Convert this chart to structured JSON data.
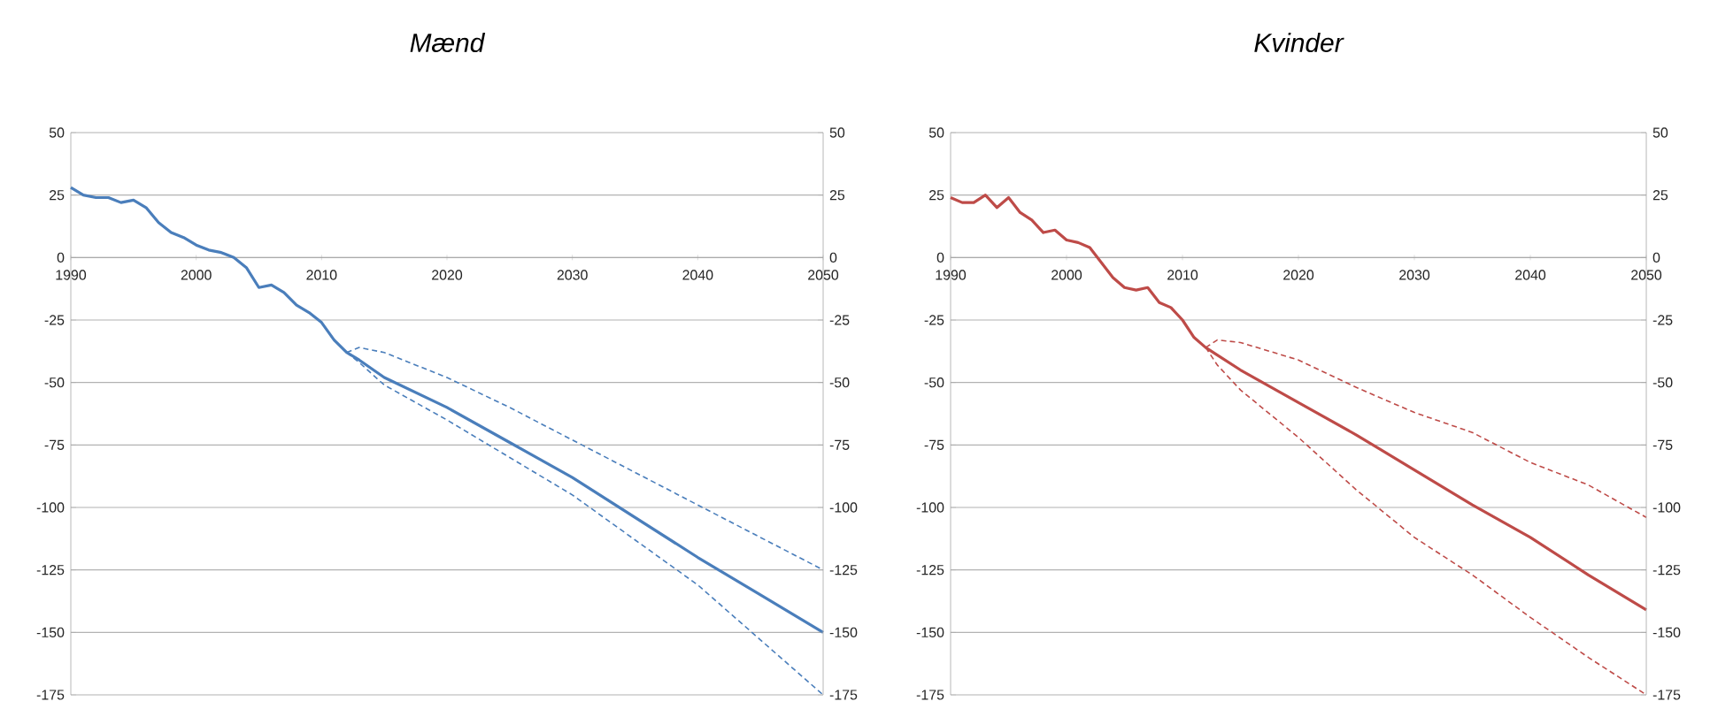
{
  "chart_data": [
    {
      "type": "line",
      "title": "Mænd",
      "xlim": [
        1990,
        2050
      ],
      "xticks": [
        1990,
        2000,
        2010,
        2020,
        2030,
        2040,
        2050
      ],
      "ylim": [
        -175,
        50
      ],
      "yticks": [
        -175,
        -150,
        -125,
        -100,
        -75,
        -50,
        -25,
        0,
        25,
        50
      ],
      "y2lim": [
        -175,
        50
      ],
      "y2ticks": [
        -175,
        -150,
        -125,
        -100,
        -75,
        -50,
        -25,
        0,
        25,
        50
      ],
      "grid": "y",
      "series": [
        {
          "color": "#4a7ebb",
          "line_style": "solid",
          "x": [
            1990,
            1991,
            1992,
            1993,
            1994,
            1995,
            1996,
            1997,
            1998,
            1999,
            2000,
            2001,
            2002,
            2003,
            2004,
            2005,
            2006,
            2007,
            2008,
            2009,
            2010,
            2011,
            2012,
            2013,
            2015,
            2020,
            2025,
            2030,
            2035,
            2040,
            2045,
            2050
          ],
          "values": [
            28,
            25,
            24,
            24,
            22,
            23,
            20,
            14,
            10,
            8,
            5,
            3,
            2,
            0,
            -4,
            -12,
            -11,
            -14,
            -19,
            -22,
            -26,
            -33,
            -38,
            -41,
            -48,
            -60,
            -74,
            -88,
            -104,
            -120,
            -135,
            -150
          ]
        },
        {
          "color": "#4a7ebb",
          "line_style": "dashed",
          "x": [
            2012,
            2013,
            2015,
            2020,
            2025,
            2030,
            2035,
            2040,
            2045,
            2050
          ],
          "values": [
            -38,
            -36,
            -38,
            -48,
            -60,
            -73,
            -86,
            -99,
            -112,
            -125
          ]
        },
        {
          "color": "#4a7ebb",
          "line_style": "dashed",
          "x": [
            2012,
            2013,
            2015,
            2020,
            2025,
            2030,
            2035,
            2040,
            2045,
            2050
          ],
          "values": [
            -38,
            -42,
            -51,
            -65,
            -80,
            -95,
            -113,
            -131,
            -153,
            -175
          ]
        }
      ]
    },
    {
      "type": "line",
      "title": "Kvinder",
      "xlim": [
        1990,
        2050
      ],
      "xticks": [
        1990,
        2000,
        2010,
        2020,
        2030,
        2040,
        2050
      ],
      "ylim": [
        -175,
        50
      ],
      "yticks": [
        -175,
        -150,
        -125,
        -100,
        -75,
        -50,
        -25,
        0,
        25,
        50
      ],
      "y2lim": [
        -175,
        50
      ],
      "y2ticks": [
        -175,
        -150,
        -125,
        -100,
        -75,
        -50,
        -25,
        0,
        25,
        50
      ],
      "grid": "y",
      "series": [
        {
          "color": "#be4b48",
          "line_style": "solid",
          "x": [
            1990,
            1991,
            1992,
            1993,
            1994,
            1995,
            1996,
            1997,
            1998,
            1999,
            2000,
            2001,
            2002,
            2003,
            2004,
            2005,
            2006,
            2007,
            2008,
            2009,
            2010,
            2011,
            2012,
            2013,
            2015,
            2020,
            2025,
            2030,
            2035,
            2040,
            2045,
            2050
          ],
          "values": [
            24,
            22,
            22,
            25,
            20,
            24,
            18,
            15,
            10,
            11,
            7,
            6,
            4,
            -2,
            -8,
            -12,
            -13,
            -12,
            -18,
            -20,
            -25,
            -32,
            -36,
            -39,
            -45,
            -58,
            -71,
            -85,
            -99,
            -112,
            -127,
            -141
          ]
        },
        {
          "color": "#be4b48",
          "line_style": "dashed",
          "x": [
            2012,
            2013,
            2015,
            2020,
            2025,
            2030,
            2035,
            2040,
            2045,
            2050
          ],
          "values": [
            -36,
            -33,
            -34,
            -41,
            -52,
            -62,
            -70,
            -82,
            -91,
            -104
          ]
        },
        {
          "color": "#be4b48",
          "line_style": "dashed",
          "x": [
            2012,
            2013,
            2015,
            2020,
            2025,
            2030,
            2035,
            2040,
            2045,
            2050
          ],
          "values": [
            -36,
            -43,
            -53,
            -72,
            -93,
            -112,
            -127,
            -144,
            -160,
            -175
          ]
        }
      ]
    }
  ]
}
